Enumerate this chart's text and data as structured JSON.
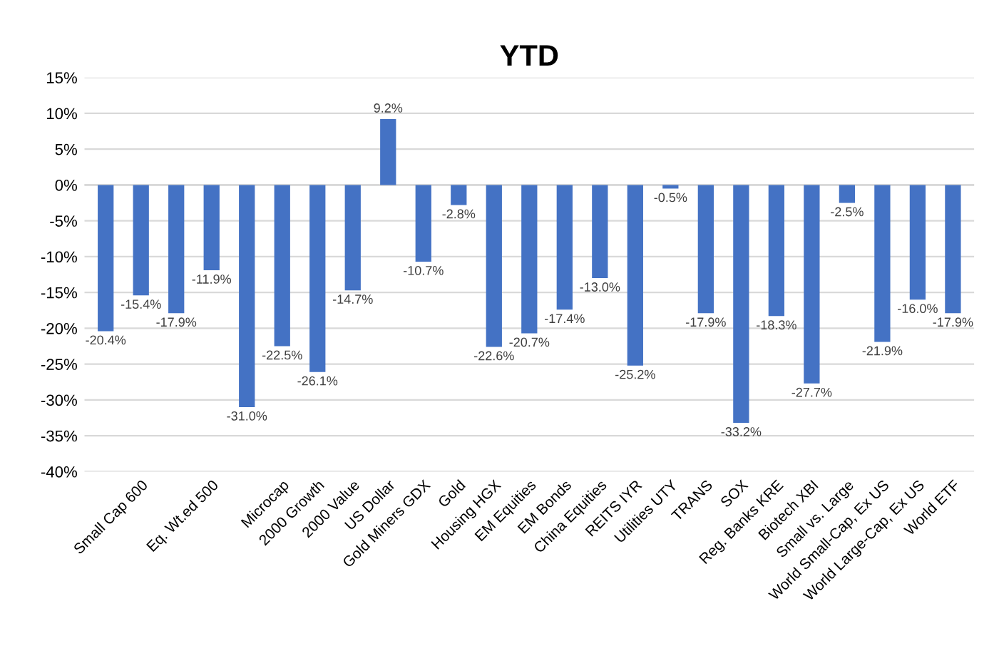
{
  "chart_data": {
    "type": "bar",
    "title": "YTD",
    "categories": [
      null,
      "Small Cap 600",
      null,
      "Eq. Wt.ed 500",
      null,
      "Microcap",
      "2000 Growth",
      "2000 Value",
      "US Dollar",
      "Gold Miners GDX",
      "Gold",
      "Housing HGX",
      "EM Equities",
      "EM Bonds",
      "China Equities",
      "REITS IYR",
      "Utilities UTY",
      "TRANS",
      "SOX",
      "Reg. Banks KRE",
      "Biotech XBI",
      "Small vs. Large",
      "World Small-Cap, Ex US",
      "World Large-Cap, Ex US",
      "World ETF"
    ],
    "values": [
      -20.4,
      -15.4,
      -17.9,
      -11.9,
      -31.0,
      -22.5,
      -26.1,
      -14.7,
      9.2,
      -10.7,
      -2.8,
      -22.6,
      -20.7,
      -17.4,
      -13.0,
      -25.2,
      -0.5,
      -17.9,
      -33.2,
      -18.3,
      -27.7,
      -2.5,
      -21.9,
      -16.0,
      -17.9
    ],
    "value_labels": [
      "-20.4%",
      "-15.4%",
      "-17.9%",
      "-11.9%",
      "-31.0%",
      "-22.5%",
      "-26.1%",
      "-14.7%",
      "9.2%",
      "-10.7%",
      "-2.8%",
      "-22.6%",
      "-20.7%",
      "-17.4%",
      "-13.0%",
      "-25.2%",
      "-0.5%",
      "-17.9%",
      "-33.2%",
      "-18.3%",
      "-27.7%",
      "-2.5%",
      "-21.9%",
      "-16.0%",
      "-17.9%"
    ],
    "color": "#4472c4",
    "ylim": [
      -40,
      15
    ],
    "yticks": [
      {
        "value": -40,
        "label": "-40%"
      },
      {
        "value": -35,
        "label": "-35%"
      },
      {
        "value": -30,
        "label": "-30%"
      },
      {
        "value": -25,
        "label": "-25%"
      },
      {
        "value": -20,
        "label": "-20%"
      },
      {
        "value": -15,
        "label": "-15%"
      },
      {
        "value": -10,
        "label": "-10%"
      },
      {
        "value": -5,
        "label": "-5%"
      },
      {
        "value": 0,
        "label": "0%"
      },
      {
        "value": 5,
        "label": "5%"
      },
      {
        "value": 10,
        "label": "10%"
      },
      {
        "value": 15,
        "label": "15%"
      }
    ],
    "grid": "y",
    "legend": false
  }
}
